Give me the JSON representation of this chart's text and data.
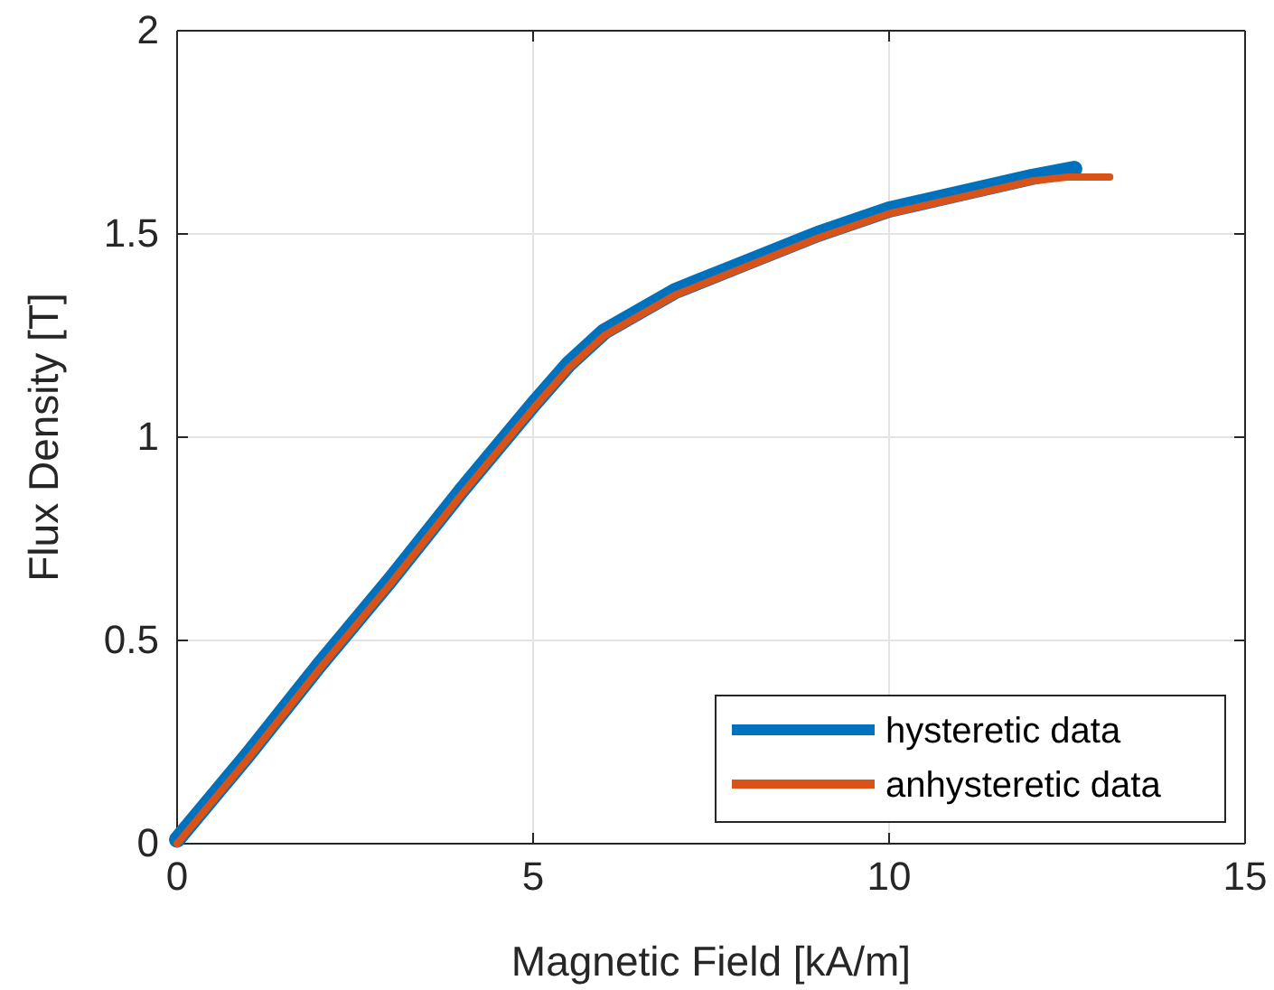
{
  "chart_data": {
    "type": "line",
    "xlabel": "Magnetic Field [kA/m]",
    "ylabel": "Flux Density [T]",
    "xlim": [
      0,
      15
    ],
    "xticks": [
      0,
      5,
      10,
      15
    ],
    "ylim": [
      0,
      2
    ],
    "yticks": [
      0,
      0.5,
      1,
      1.5,
      2
    ],
    "grid": true,
    "legend": "bottom right",
    "marker": "none",
    "line_style": "solid",
    "series": [
      {
        "name": "hysteretic data",
        "color": "#0072bd",
        "x": [
          0,
          1,
          2,
          3,
          4,
          5,
          5.5,
          6,
          6.5,
          7,
          8,
          9,
          10,
          11,
          12,
          12.6
        ],
        "values": [
          0.01,
          0.22,
          0.44,
          0.65,
          0.87,
          1.08,
          1.18,
          1.26,
          1.31,
          1.36,
          1.43,
          1.5,
          1.56,
          1.6,
          1.64,
          1.66
        ]
      },
      {
        "name": "anhysteretic data",
        "color": "#d95319",
        "x": [
          0,
          1,
          2,
          3,
          4,
          5,
          5.5,
          6,
          6.5,
          7,
          8,
          9,
          10,
          11,
          12,
          12.5,
          13.1
        ],
        "values": [
          0,
          0.21,
          0.43,
          0.64,
          0.86,
          1.07,
          1.17,
          1.25,
          1.3,
          1.35,
          1.42,
          1.49,
          1.55,
          1.59,
          1.63,
          1.64,
          1.64
        ]
      }
    ]
  }
}
